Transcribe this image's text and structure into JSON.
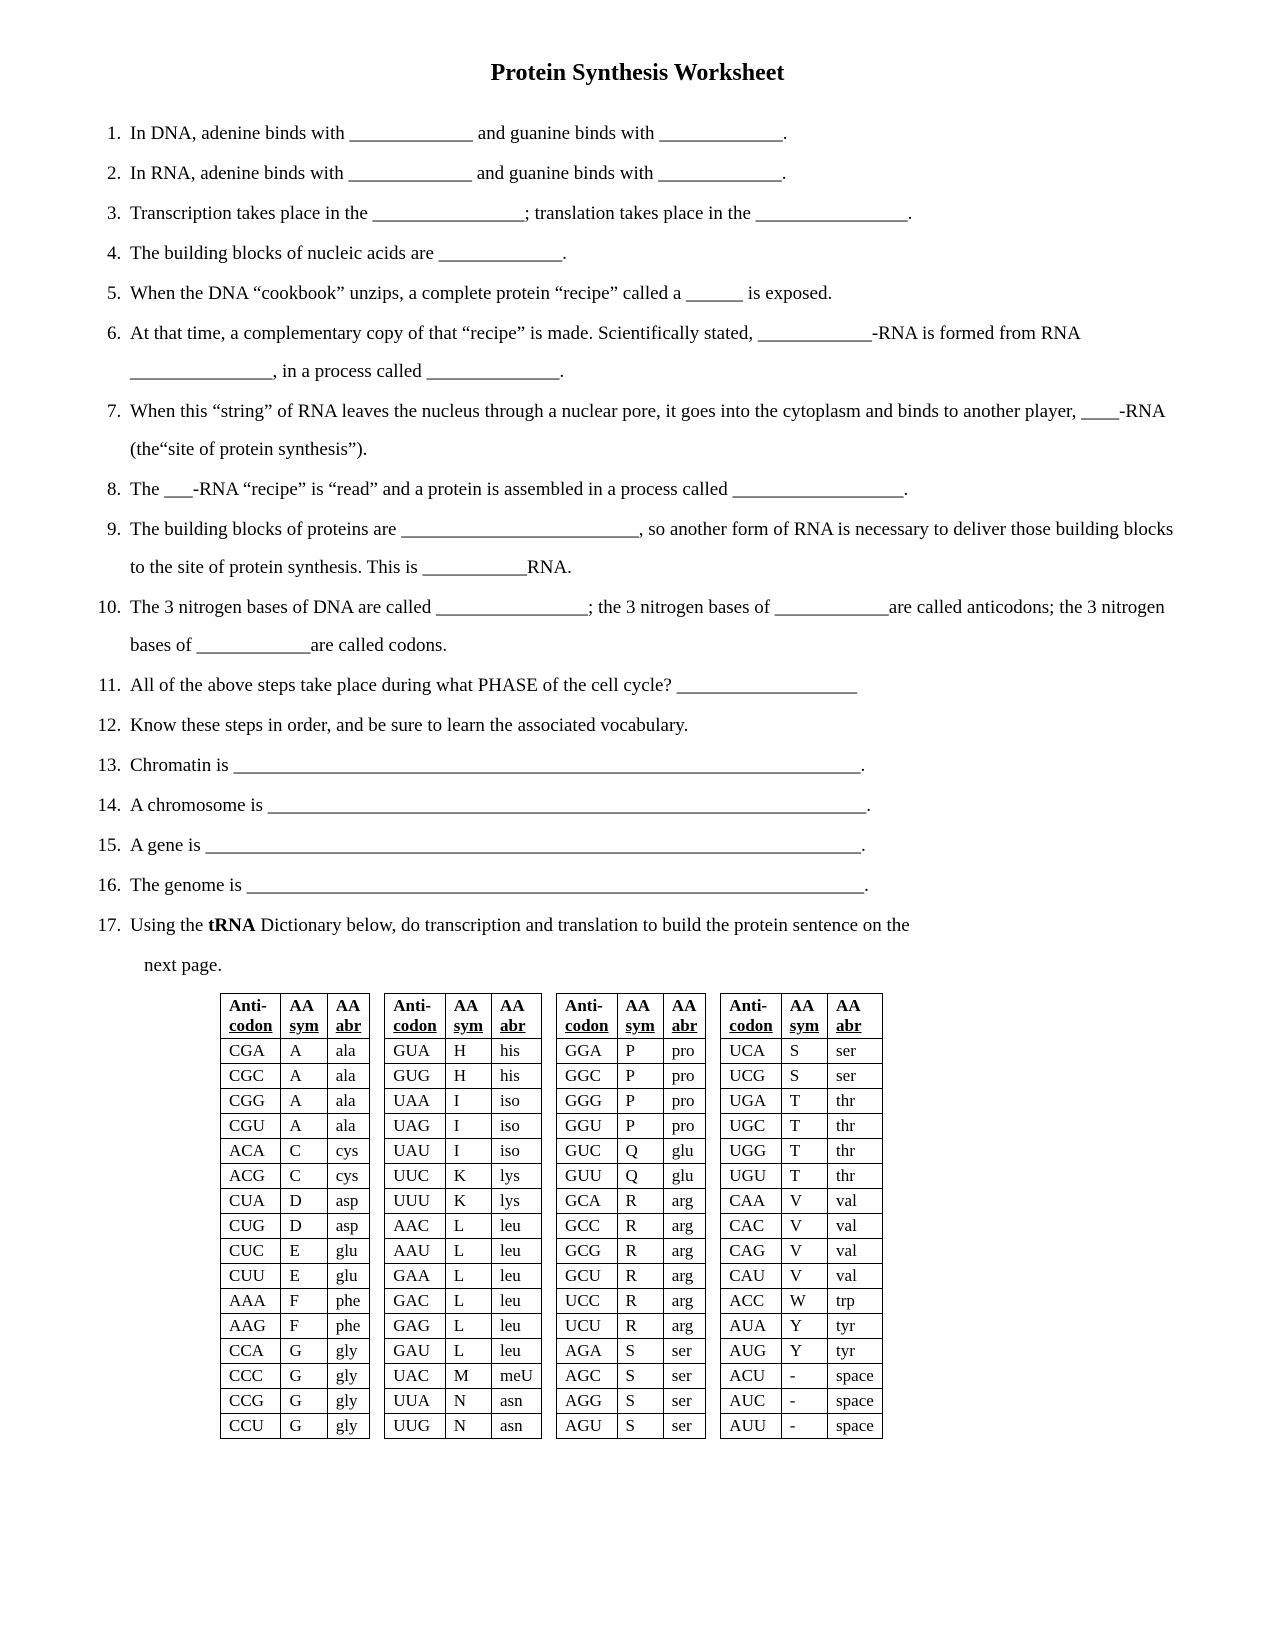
{
  "title": "Protein Synthesis Worksheet",
  "questions": [
    "In DNA, adenine binds with _____________ and guanine binds with _____________.",
    "In RNA, adenine binds with _____________ and guanine binds with _____________.",
    "Transcription takes place in the ________________; translation takes place in the ________________.",
    "The building blocks of nucleic acids are _____________.",
    "When the DNA “cookbook” unzips, a complete protein “recipe” called a ______  is exposed.",
    "At that time, a complementary copy of that “recipe” is made. Scientifically stated, ____________-RNA is formed from RNA _______________, in a process called ______________.",
    "When this “string” of RNA leaves the nucleus through a nuclear pore, it goes into the cytoplasm and binds to another player, ____-RNA (the“site of protein synthesis”).",
    "The ___-RNA “recipe” is “read” and a protein is assembled in a process called __________________.",
    "The building blocks of proteins are _________________________, so another form of RNA is necessary to deliver those building blocks to the site of protein synthesis.  This is ___________RNA.",
    "The 3 nitrogen bases of DNA are called ________________; the 3 nitrogen bases of ____________are called anticodons; the 3 nitrogen bases of ____________are called codons.",
    "All of the above steps take place during what PHASE of the cell cycle? ___________________",
    "Know these steps in order, and be sure to learn the associated vocabulary.",
    "Chromatin is __________________________________________________________________.",
    "A chromosome is _______________________________________________________________.",
    "A gene is _____________________________________________________________________.",
    "The genome is _________________________________________________________________."
  ],
  "q17_pre": "Using the ",
  "q17_bold": "tRNA",
  "q17_post": " Dictionary below, do transcription and translation to build the protein sentence on the",
  "intro": "next page.",
  "table": {
    "head1a": "Anti-",
    "head1b": "codon",
    "head2a": "AA",
    "head2b": "sym",
    "head3a": "AA",
    "head3b": "abr",
    "groups": [
      [
        [
          "CGA",
          "A",
          "ala"
        ],
        [
          "CGC",
          "A",
          "ala"
        ],
        [
          "CGG",
          "A",
          "ala"
        ],
        [
          "CGU",
          "A",
          "ala"
        ],
        [
          "ACA",
          "C",
          "cys"
        ],
        [
          "ACG",
          "C",
          "cys"
        ],
        [
          "CUA",
          "D",
          "asp"
        ],
        [
          "CUG",
          "D",
          "asp"
        ],
        [
          "CUC",
          "E",
          "glu"
        ],
        [
          "CUU",
          "E",
          "glu"
        ],
        [
          "AAA",
          "F",
          "phe"
        ],
        [
          "AAG",
          "F",
          "phe"
        ],
        [
          "CCA",
          "G",
          "gly"
        ],
        [
          "CCC",
          "G",
          "gly"
        ],
        [
          "CCG",
          "G",
          "gly"
        ],
        [
          "CCU",
          "G",
          "gly"
        ]
      ],
      [
        [
          "GUA",
          "H",
          "his"
        ],
        [
          "GUG",
          "H",
          "his"
        ],
        [
          "UAA",
          "I",
          "iso"
        ],
        [
          "UAG",
          "I",
          "iso"
        ],
        [
          "UAU",
          "I",
          "iso"
        ],
        [
          "UUC",
          "K",
          "lys"
        ],
        [
          "UUU",
          "K",
          "lys"
        ],
        [
          "AAC",
          "L",
          "leu"
        ],
        [
          "AAU",
          "L",
          "leu"
        ],
        [
          "GAA",
          "L",
          "leu"
        ],
        [
          "GAC",
          "L",
          "leu"
        ],
        [
          "GAG",
          "L",
          "leu"
        ],
        [
          "GAU",
          "L",
          "leu"
        ],
        [
          "UAC",
          "M",
          "meU"
        ],
        [
          "UUA",
          "N",
          "asn"
        ],
        [
          "UUG",
          "N",
          "asn"
        ]
      ],
      [
        [
          "GGA",
          "P",
          "pro"
        ],
        [
          "GGC",
          "P",
          "pro"
        ],
        [
          "GGG",
          "P",
          "pro"
        ],
        [
          "GGU",
          "P",
          "pro"
        ],
        [
          "GUC",
          "Q",
          "glu"
        ],
        [
          "GUU",
          "Q",
          "glu"
        ],
        [
          "GCA",
          "R",
          "arg"
        ],
        [
          "GCC",
          "R",
          "arg"
        ],
        [
          "GCG",
          "R",
          "arg"
        ],
        [
          "GCU",
          "R",
          "arg"
        ],
        [
          "UCC",
          "R",
          "arg"
        ],
        [
          "UCU",
          "R",
          "arg"
        ],
        [
          "AGA",
          "S",
          "ser"
        ],
        [
          "AGC",
          "S",
          "ser"
        ],
        [
          "AGG",
          "S",
          "ser"
        ],
        [
          "AGU",
          "S",
          "ser"
        ]
      ],
      [
        [
          "UCA",
          "S",
          "ser"
        ],
        [
          "UCG",
          "S",
          "ser"
        ],
        [
          "UGA",
          "T",
          "thr"
        ],
        [
          "UGC",
          "T",
          "thr"
        ],
        [
          "UGG",
          "T",
          "thr"
        ],
        [
          "UGU",
          "T",
          "thr"
        ],
        [
          "CAA",
          "V",
          "val"
        ],
        [
          "CAC",
          "V",
          "val"
        ],
        [
          "CAG",
          "V",
          "val"
        ],
        [
          "CAU",
          "V",
          "val"
        ],
        [
          "ACC",
          "W",
          "trp"
        ],
        [
          "AUA",
          "Y",
          "tyr"
        ],
        [
          "AUG",
          "Y",
          "tyr"
        ],
        [
          "ACU",
          "-",
          "space"
        ],
        [
          "AUC",
          "-",
          "space"
        ],
        [
          "AUU",
          "-",
          "space"
        ]
      ]
    ]
  }
}
